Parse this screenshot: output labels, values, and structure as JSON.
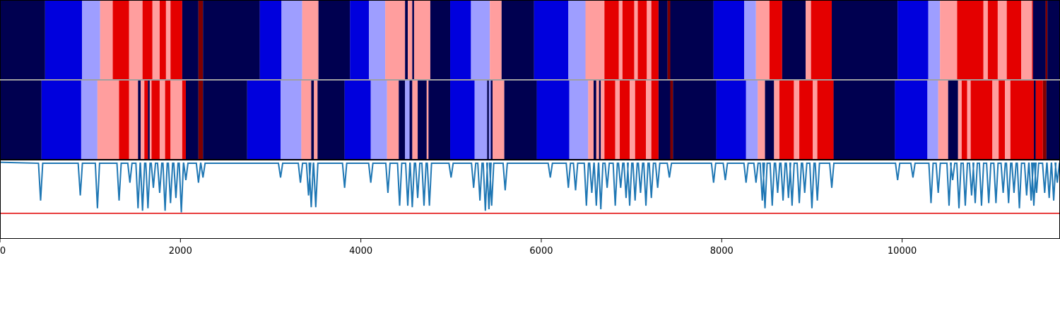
{
  "chart_data": {
    "type": "heatmap",
    "title": "",
    "xlabel": "",
    "ylabel": "",
    "xlim": [
      0,
      11750
    ],
    "x_ticks": [
      "0",
      "2000",
      "4000",
      "6000",
      "8000",
      "10000"
    ],
    "x_tick_values": [
      0,
      2000,
      4000,
      6000,
      8000,
      10000
    ],
    "colors": {
      "0": "#000050",
      "1": "#0000dd",
      "2": "#9e9eff",
      "3": "#ff9e9e",
      "4": "#e40000",
      "5": "#800000"
    },
    "tracks": [
      {
        "segments": [
          [
            0,
            500,
            0
          ],
          [
            500,
            910,
            1
          ],
          [
            910,
            1110,
            2
          ],
          [
            1110,
            1250,
            3
          ],
          [
            1250,
            1430,
            4
          ],
          [
            1430,
            1580,
            3
          ],
          [
            1580,
            1690,
            4
          ],
          [
            1690,
            1770,
            3
          ],
          [
            1770,
            1840,
            4
          ],
          [
            1840,
            1890,
            3
          ],
          [
            1890,
            2020,
            4
          ],
          [
            2020,
            2200,
            0
          ],
          [
            2200,
            2250,
            5
          ],
          [
            2250,
            2880,
            0
          ],
          [
            2880,
            3120,
            1
          ],
          [
            3120,
            3350,
            2
          ],
          [
            3350,
            3530,
            3
          ],
          [
            3530,
            3880,
            0
          ],
          [
            3880,
            4090,
            1
          ],
          [
            4090,
            4270,
            2
          ],
          [
            4270,
            4490,
            3
          ],
          [
            4490,
            4520,
            0
          ],
          [
            4520,
            4570,
            3
          ],
          [
            4570,
            4590,
            0
          ],
          [
            4590,
            4770,
            3
          ],
          [
            4770,
            4990,
            0
          ],
          [
            4990,
            5220,
            1
          ],
          [
            5220,
            5430,
            2
          ],
          [
            5430,
            5560,
            3
          ],
          [
            5560,
            5920,
            0
          ],
          [
            5920,
            6300,
            1
          ],
          [
            6300,
            6490,
            2
          ],
          [
            6490,
            6700,
            3
          ],
          [
            6700,
            6860,
            4
          ],
          [
            6860,
            6900,
            3
          ],
          [
            6900,
            7030,
            4
          ],
          [
            7030,
            7070,
            3
          ],
          [
            7070,
            7170,
            4
          ],
          [
            7170,
            7220,
            3
          ],
          [
            7220,
            7300,
            4
          ],
          [
            7300,
            7400,
            0
          ],
          [
            7400,
            7430,
            5
          ],
          [
            7430,
            7910,
            0
          ],
          [
            7910,
            8250,
            1
          ],
          [
            8250,
            8380,
            2
          ],
          [
            8380,
            8530,
            3
          ],
          [
            8530,
            8670,
            4
          ],
          [
            8670,
            8930,
            0
          ],
          [
            8930,
            8990,
            3
          ],
          [
            8990,
            9220,
            4
          ],
          [
            9220,
            9950,
            0
          ],
          [
            9950,
            10290,
            1
          ],
          [
            10290,
            10420,
            2
          ],
          [
            10420,
            10610,
            3
          ],
          [
            10610,
            10900,
            4
          ],
          [
            10900,
            10950,
            3
          ],
          [
            10950,
            11060,
            4
          ],
          [
            11060,
            11160,
            3
          ],
          [
            11160,
            11320,
            4
          ],
          [
            11320,
            11440,
            3
          ],
          [
            11440,
            11450,
            4
          ],
          [
            11450,
            11590,
            0
          ],
          [
            11590,
            11610,
            5
          ],
          [
            11610,
            11750,
            0
          ]
        ]
      },
      {
        "segments": [
          [
            0,
            460,
            0
          ],
          [
            460,
            900,
            1
          ],
          [
            900,
            1080,
            2
          ],
          [
            1080,
            1320,
            3
          ],
          [
            1320,
            1430,
            4
          ],
          [
            1430,
            1530,
            3
          ],
          [
            1530,
            1560,
            0
          ],
          [
            1560,
            1600,
            3
          ],
          [
            1600,
            1640,
            4
          ],
          [
            1640,
            1660,
            0
          ],
          [
            1660,
            1680,
            3
          ],
          [
            1680,
            1770,
            4
          ],
          [
            1770,
            1830,
            3
          ],
          [
            1830,
            1890,
            4
          ],
          [
            1890,
            2020,
            3
          ],
          [
            2020,
            2060,
            4
          ],
          [
            2060,
            2200,
            0
          ],
          [
            2200,
            2250,
            5
          ],
          [
            2250,
            2740,
            0
          ],
          [
            2740,
            3110,
            1
          ],
          [
            3110,
            3340,
            2
          ],
          [
            3340,
            3450,
            3
          ],
          [
            3450,
            3480,
            0
          ],
          [
            3480,
            3520,
            3
          ],
          [
            3520,
            3820,
            0
          ],
          [
            3820,
            4110,
            1
          ],
          [
            4110,
            4290,
            2
          ],
          [
            4290,
            4420,
            3
          ],
          [
            4420,
            4490,
            0
          ],
          [
            4490,
            4540,
            2
          ],
          [
            4540,
            4570,
            0
          ],
          [
            4570,
            4630,
            3
          ],
          [
            4630,
            4730,
            0
          ],
          [
            4730,
            4750,
            3
          ],
          [
            4750,
            4990,
            0
          ],
          [
            4990,
            5260,
            1
          ],
          [
            5260,
            5400,
            2
          ],
          [
            5400,
            5420,
            0
          ],
          [
            5420,
            5440,
            2
          ],
          [
            5440,
            5460,
            0
          ],
          [
            5460,
            5590,
            3
          ],
          [
            5590,
            5950,
            0
          ],
          [
            5950,
            6310,
            1
          ],
          [
            6310,
            6520,
            2
          ],
          [
            6520,
            6580,
            3
          ],
          [
            6580,
            6610,
            0
          ],
          [
            6610,
            6640,
            3
          ],
          [
            6640,
            6660,
            0
          ],
          [
            6660,
            6700,
            3
          ],
          [
            6700,
            6820,
            4
          ],
          [
            6820,
            6870,
            3
          ],
          [
            6870,
            6980,
            4
          ],
          [
            6980,
            7040,
            3
          ],
          [
            7040,
            7160,
            4
          ],
          [
            7160,
            7220,
            3
          ],
          [
            7220,
            7300,
            4
          ],
          [
            7300,
            7430,
            0
          ],
          [
            7430,
            7460,
            5
          ],
          [
            7460,
            7940,
            0
          ],
          [
            7940,
            8270,
            1
          ],
          [
            8270,
            8400,
            2
          ],
          [
            8400,
            8480,
            3
          ],
          [
            8480,
            8580,
            0
          ],
          [
            8580,
            8640,
            3
          ],
          [
            8640,
            8800,
            4
          ],
          [
            8800,
            8860,
            3
          ],
          [
            8860,
            9010,
            4
          ],
          [
            9010,
            9060,
            3
          ],
          [
            9060,
            9240,
            4
          ],
          [
            9240,
            9920,
            0
          ],
          [
            9920,
            10280,
            1
          ],
          [
            10280,
            10400,
            2
          ],
          [
            10400,
            10510,
            3
          ],
          [
            10510,
            10620,
            0
          ],
          [
            10620,
            10660,
            3
          ],
          [
            10660,
            10720,
            4
          ],
          [
            10720,
            10760,
            3
          ],
          [
            10760,
            11000,
            4
          ],
          [
            11000,
            11070,
            3
          ],
          [
            11070,
            11140,
            4
          ],
          [
            11140,
            11200,
            3
          ],
          [
            11200,
            11460,
            4
          ],
          [
            11460,
            11480,
            0
          ],
          [
            11480,
            11560,
            4
          ],
          [
            11560,
            11600,
            5
          ],
          [
            11600,
            11750,
            0
          ]
        ]
      }
    ],
    "line_panel": {
      "ylim": [
        -1.5,
        0.05
      ],
      "threshold": -1.0,
      "threshold_color": "#e00000",
      "line_color": "#1f77b4",
      "dips": [
        [
          450,
          -0.75
        ],
        [
          890,
          -0.65
        ],
        [
          1080,
          -0.9
        ],
        [
          1320,
          -0.75
        ],
        [
          1440,
          -0.4
        ],
        [
          1530,
          -0.9
        ],
        [
          1580,
          -0.95
        ],
        [
          1640,
          -0.9
        ],
        [
          1700,
          -0.5
        ],
        [
          1770,
          -0.6
        ],
        [
          1830,
          -0.95
        ],
        [
          1890,
          -0.8
        ],
        [
          1950,
          -0.7
        ],
        [
          2010,
          -0.98
        ],
        [
          2060,
          -0.35
        ],
        [
          2200,
          -0.4
        ],
        [
          2250,
          -0.3
        ],
        [
          3110,
          -0.3
        ],
        [
          3330,
          -0.4
        ],
        [
          3420,
          -0.65
        ],
        [
          3450,
          -0.88
        ],
        [
          3500,
          -0.88
        ],
        [
          3820,
          -0.5
        ],
        [
          4110,
          -0.4
        ],
        [
          4300,
          -0.6
        ],
        [
          4430,
          -0.85
        ],
        [
          4520,
          -0.85
        ],
        [
          4570,
          -0.88
        ],
        [
          4630,
          -0.7
        ],
        [
          4700,
          -0.85
        ],
        [
          4760,
          -0.85
        ],
        [
          5000,
          -0.3
        ],
        [
          5250,
          -0.5
        ],
        [
          5320,
          -0.75
        ],
        [
          5380,
          -0.95
        ],
        [
          5420,
          -0.92
        ],
        [
          5450,
          -0.85
        ],
        [
          5600,
          -0.55
        ],
        [
          6100,
          -0.3
        ],
        [
          6300,
          -0.5
        ],
        [
          6380,
          -0.55
        ],
        [
          6500,
          -0.85
        ],
        [
          6560,
          -0.6
        ],
        [
          6610,
          -0.85
        ],
        [
          6660,
          -0.92
        ],
        [
          6730,
          -0.5
        ],
        [
          6820,
          -0.85
        ],
        [
          6880,
          -0.5
        ],
        [
          6940,
          -0.7
        ],
        [
          6980,
          -0.85
        ],
        [
          7040,
          -0.75
        ],
        [
          7100,
          -0.6
        ],
        [
          7160,
          -0.85
        ],
        [
          7220,
          -0.7
        ],
        [
          7290,
          -0.5
        ],
        [
          7420,
          -0.3
        ],
        [
          7910,
          -0.4
        ],
        [
          8040,
          -0.35
        ],
        [
          8270,
          -0.4
        ],
        [
          8380,
          -0.4
        ],
        [
          8450,
          -0.75
        ],
        [
          8480,
          -0.9
        ],
        [
          8560,
          -0.85
        ],
        [
          8620,
          -0.6
        ],
        [
          8680,
          -0.75
        ],
        [
          8740,
          -0.7
        ],
        [
          8780,
          -0.85
        ],
        [
          8860,
          -0.8
        ],
        [
          8920,
          -0.6
        ],
        [
          9000,
          -0.9
        ],
        [
          9060,
          -0.75
        ],
        [
          9220,
          -0.5
        ],
        [
          9950,
          -0.35
        ],
        [
          10120,
          -0.3
        ],
        [
          10320,
          -0.8
        ],
        [
          10400,
          -0.6
        ],
        [
          10520,
          -0.85
        ],
        [
          10560,
          -0.35
        ],
        [
          10630,
          -0.9
        ],
        [
          10700,
          -0.85
        ],
        [
          10770,
          -0.65
        ],
        [
          10810,
          -0.8
        ],
        [
          10880,
          -0.85
        ],
        [
          10960,
          -0.8
        ],
        [
          11040,
          -0.8
        ],
        [
          11120,
          -0.6
        ],
        [
          11180,
          -0.8
        ],
        [
          11240,
          -0.6
        ],
        [
          11300,
          -0.9
        ],
        [
          11380,
          -0.65
        ],
        [
          11430,
          -0.75
        ],
        [
          11460,
          -0.85
        ],
        [
          11490,
          -0.6
        ],
        [
          11580,
          -0.6
        ],
        [
          11630,
          -0.7
        ],
        [
          11680,
          -0.75
        ],
        [
          11720,
          -0.4
        ]
      ]
    }
  }
}
